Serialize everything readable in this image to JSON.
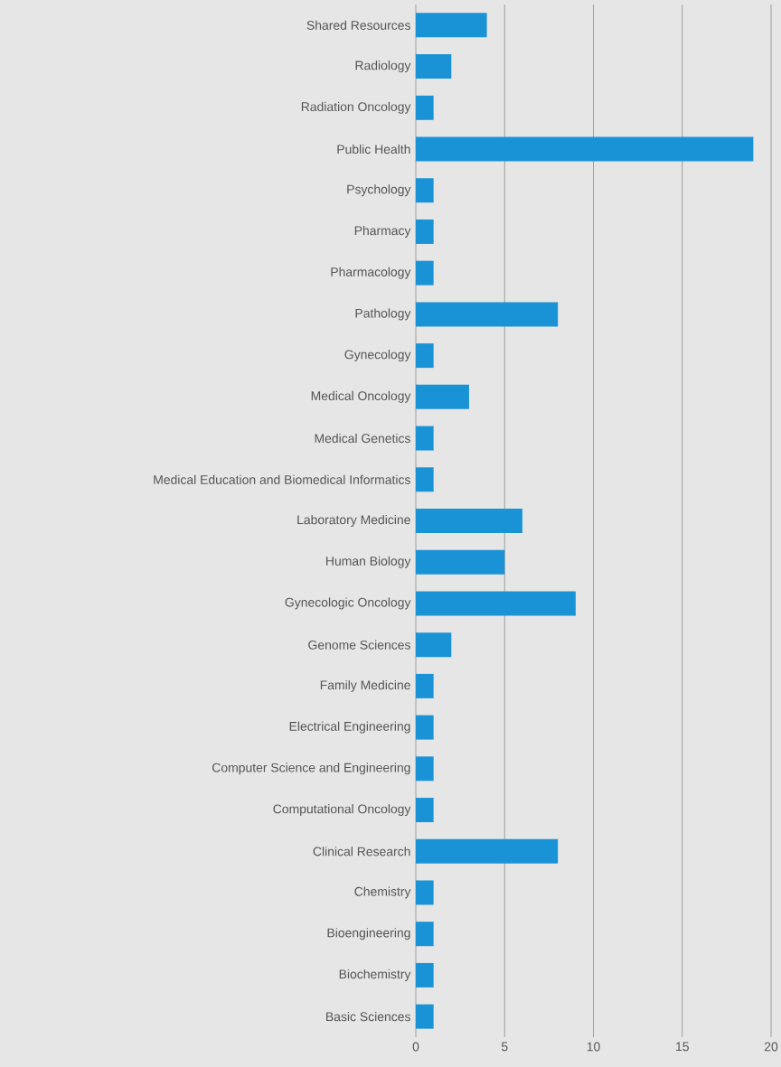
{
  "chart_data": {
    "type": "bar",
    "orientation": "horizontal",
    "categories": [
      "Shared Resources",
      "Radiology",
      "Radiation Oncology",
      "Public Health",
      "Psychology",
      "Pharmacy",
      "Pharmacology",
      "Pathology",
      "Gynecology",
      "Medical Oncology",
      "Medical Genetics",
      "Medical Education and Biomedical Informatics",
      "Laboratory Medicine",
      "Human Biology",
      "Gynecologic Oncology",
      "Genome Sciences",
      "Family Medicine",
      "Electrical Engineering",
      "Computer Science and Engineering",
      "Computational Oncology",
      "Clinical Research",
      "Chemistry",
      "Bioengineering",
      "Biochemistry",
      "Basic Sciences"
    ],
    "values": [
      4,
      2,
      1,
      19,
      1,
      1,
      1,
      8,
      1,
      3,
      1,
      1,
      6,
      5,
      9,
      2,
      1,
      1,
      1,
      1,
      8,
      1,
      1,
      1,
      1
    ],
    "color": "#1a93d6",
    "xlim": [
      0,
      20
    ],
    "xticks": [
      0,
      5,
      10,
      15,
      20
    ],
    "grid": "x"
  }
}
